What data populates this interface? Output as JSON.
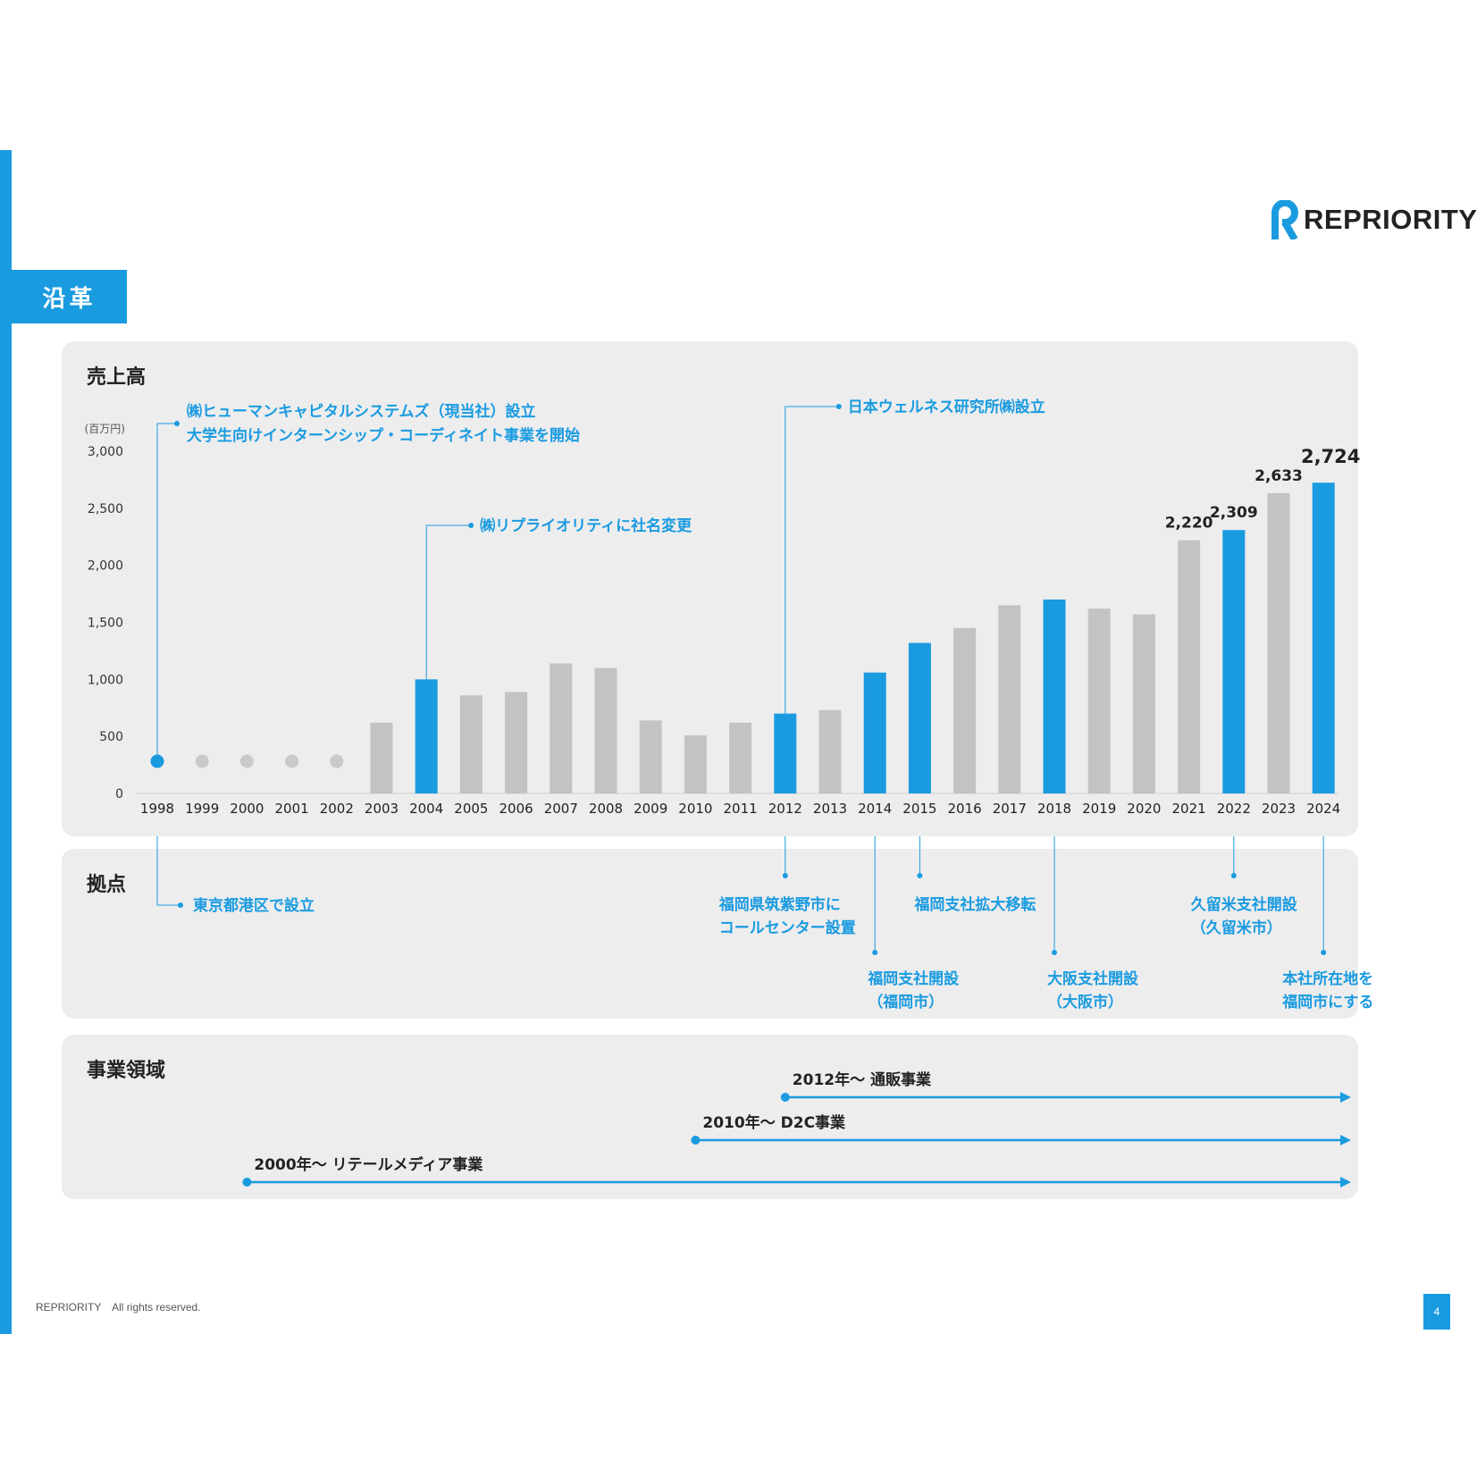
{
  "header": {
    "section_title": "沿革",
    "logo_text": "REPRIORITY"
  },
  "panels": {
    "sales_title": "売上高",
    "base_title": "拠点",
    "biz_title": "事業領域"
  },
  "chart_data": {
    "type": "bar",
    "unit_label": "(百万円)",
    "ylim": [
      0,
      3000
    ],
    "yticks": [
      "0",
      "500",
      "1,000",
      "1,500",
      "2,000",
      "2,500",
      "3,000"
    ],
    "categories": [
      "1998",
      "1999",
      "2000",
      "2001",
      "2002",
      "2003",
      "2004",
      "2005",
      "2006",
      "2007",
      "2008",
      "2009",
      "2010",
      "2011",
      "2012",
      "2013",
      "2014",
      "2015",
      "2016",
      "2017",
      "2018",
      "2019",
      "2020",
      "2021",
      "2022",
      "2023",
      "2024"
    ],
    "values": [
      null,
      null,
      null,
      null,
      null,
      620,
      1000,
      860,
      890,
      1140,
      1100,
      640,
      510,
      620,
      700,
      730,
      1060,
      1320,
      1450,
      1650,
      1700,
      1620,
      1570,
      2220,
      2309,
      2633,
      2724
    ],
    "highlight": [
      "1998",
      "2004",
      "2012",
      "2014",
      "2015",
      "2018",
      "2022",
      "2024"
    ],
    "value_labels": {
      "2021": "2,220",
      "2022": "2,309",
      "2023": "2,633",
      "2024": "2,724"
    },
    "colors": {
      "highlight": "#1a9be0",
      "normal": "#c3c3c3",
      "dot_gray": "#c9c9c9",
      "text": "#222222",
      "annotation": "#1a9be0"
    },
    "annotations": [
      {
        "year": "1998",
        "lines": [
          "㈱ヒューマンキャピタルシステムズ（現当社）設立",
          "大学生向けインターンシップ・コーディネイト事業を開始"
        ]
      },
      {
        "year": "2004",
        "lines": [
          "㈱リプライオリティに社名変更"
        ]
      },
      {
        "year": "2012",
        "lines": [
          "日本ウェルネス研究所㈱設立"
        ]
      }
    ]
  },
  "bases": [
    {
      "year": "1998",
      "lines": [
        "東京都港区で設立"
      ]
    },
    {
      "year": "2012",
      "lines": [
        "福岡県筑紫野市に",
        "コールセンター設置"
      ]
    },
    {
      "year": "2014",
      "lines": [
        "福岡支社開設",
        "（福岡市）"
      ]
    },
    {
      "year": "2015",
      "lines": [
        "福岡支社拡大移転"
      ]
    },
    {
      "year": "2018",
      "lines": [
        "大阪支社開設",
        "（大阪市）"
      ]
    },
    {
      "year": "2022",
      "lines": [
        "久留米支社開設",
        "（久留米市）"
      ]
    },
    {
      "year": "2024",
      "lines": [
        "本社所在地を",
        "福岡市にする"
      ]
    }
  ],
  "business": [
    {
      "start": "2012",
      "label": "2012年～ 通販事業"
    },
    {
      "start": "2010",
      "label": "2010年～ D2C事業"
    },
    {
      "start": "2000",
      "label": "2000年～ リテールメディア事業"
    }
  ],
  "footer": {
    "copyright": "REPRIORITY　All rights reserved.",
    "page": "4"
  }
}
